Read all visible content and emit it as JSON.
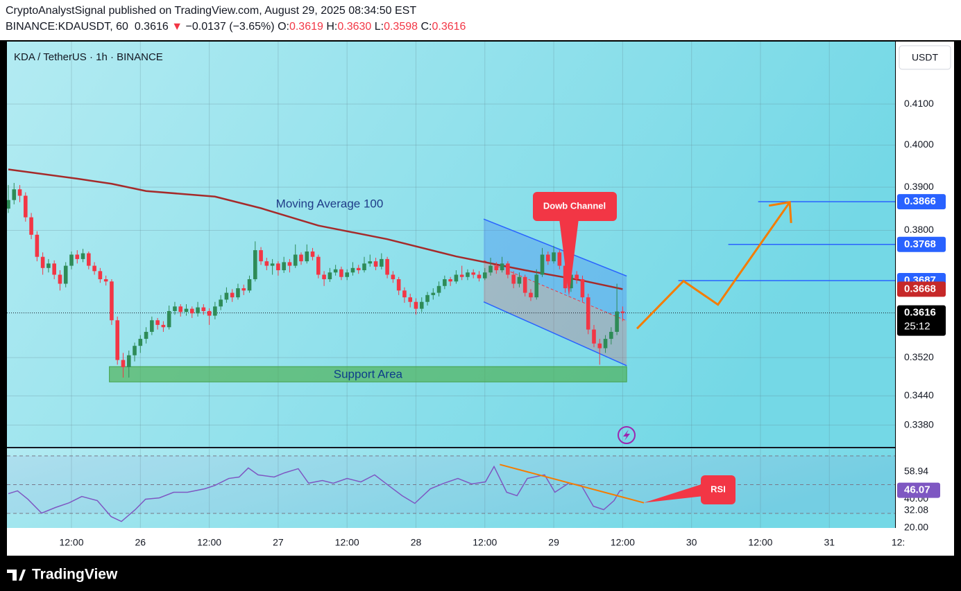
{
  "header": {
    "publisher": "CryptoAnalystSignal published on TradingView.com, August 29, 2025 08:34:50 EST",
    "symbol": "BINANCE:KDAUSDT, 60",
    "price": "0.3616",
    "arrow": "▼",
    "change": "−0.0137 (−3.65%)",
    "ohlc": [
      [
        "O:",
        "0.3619"
      ],
      [
        "H:",
        "0.3630"
      ],
      [
        "L:",
        "0.3598"
      ],
      [
        "C:",
        "0.3616"
      ]
    ]
  },
  "footer": {
    "brand": "TradingView"
  },
  "chart_data": [
    {
      "type": "candlestick",
      "title": "KDA / TetherUS · 1h · BINANCE",
      "currency": "USDT",
      "log_scale": true,
      "grid": true,
      "up_color": "#2e8b57",
      "down_color": "#f23645",
      "ylim": [
        0.3336,
        0.4257
      ],
      "yticks": [
        {
          "value": 0.338,
          "label": "0.3380"
        },
        {
          "value": 0.344,
          "label": "0.3440"
        },
        {
          "value": 0.352,
          "label": "0.3520"
        },
        {
          "value": 0.38,
          "label": "0.3800"
        },
        {
          "value": 0.39,
          "label": "0.3900"
        },
        {
          "value": 0.4,
          "label": "0.4000"
        },
        {
          "value": 0.41,
          "label": "0.4100"
        }
      ],
      "xlim": [
        -0.24,
        154.45
      ],
      "xticks": [
        {
          "value": 11,
          "label": "12:00"
        },
        {
          "value": 23,
          "label": "26"
        },
        {
          "value": 35,
          "label": "12:00"
        },
        {
          "value": 47,
          "label": "27"
        },
        {
          "value": 59,
          "label": "12:00"
        },
        {
          "value": 71,
          "label": "28"
        },
        {
          "value": 83,
          "label": "12:00"
        },
        {
          "value": 95,
          "label": "29"
        },
        {
          "value": 107,
          "label": "12:00"
        },
        {
          "value": 119,
          "label": "30"
        },
        {
          "value": 131,
          "label": "12:00"
        },
        {
          "value": 143,
          "label": "31"
        },
        {
          "value": 155,
          "label": "12:"
        }
      ],
      "candles": [
        [
          0.385,
          0.3905,
          0.384,
          0.387
        ],
        [
          0.387,
          0.391,
          0.386,
          0.3895
        ],
        [
          0.3895,
          0.3905,
          0.3865,
          0.388
        ],
        [
          0.388,
          0.3888,
          0.382,
          0.383
        ],
        [
          0.383,
          0.384,
          0.378,
          0.379
        ],
        [
          0.379,
          0.3798,
          0.373,
          0.374
        ],
        [
          0.374,
          0.375,
          0.37,
          0.3715
        ],
        [
          0.3715,
          0.3735,
          0.3705,
          0.3725
        ],
        [
          0.3725,
          0.3732,
          0.369,
          0.37
        ],
        [
          0.37,
          0.371,
          0.3665,
          0.368
        ],
        [
          0.368,
          0.3728,
          0.3672,
          0.372
        ],
        [
          0.372,
          0.3752,
          0.3712,
          0.3745
        ],
        [
          0.3745,
          0.3755,
          0.3725,
          0.3735
        ],
        [
          0.3735,
          0.3758,
          0.3728,
          0.3748
        ],
        [
          0.3748,
          0.3752,
          0.3712,
          0.372
        ],
        [
          0.372,
          0.3728,
          0.37,
          0.3708
        ],
        [
          0.3708,
          0.3715,
          0.3682,
          0.369
        ],
        [
          0.369,
          0.3698,
          0.3676,
          0.3685
        ],
        [
          0.3685,
          0.369,
          0.359,
          0.36
        ],
        [
          0.36,
          0.3608,
          0.3505,
          0.3515
        ],
        [
          0.3515,
          0.353,
          0.3478,
          0.35
        ],
        [
          0.35,
          0.3535,
          0.3478,
          0.3525
        ],
        [
          0.3525,
          0.3552,
          0.3512,
          0.3545
        ],
        [
          0.3545,
          0.3568,
          0.353,
          0.356
        ],
        [
          0.356,
          0.3585,
          0.355,
          0.3575
        ],
        [
          0.3575,
          0.3608,
          0.3568,
          0.36
        ],
        [
          0.36,
          0.3605,
          0.358,
          0.359
        ],
        [
          0.359,
          0.3598,
          0.3575,
          0.3585
        ],
        [
          0.3585,
          0.3632,
          0.358,
          0.362
        ],
        [
          0.362,
          0.364,
          0.3612,
          0.363
        ],
        [
          0.363,
          0.3635,
          0.3608,
          0.3618
        ],
        [
          0.3618,
          0.3635,
          0.361,
          0.3625
        ],
        [
          0.3625,
          0.363,
          0.3605,
          0.3615
        ],
        [
          0.3615,
          0.364,
          0.3608,
          0.3628
        ],
        [
          0.3628,
          0.3635,
          0.3612,
          0.362
        ],
        [
          0.362,
          0.3626,
          0.359,
          0.361
        ],
        [
          0.361,
          0.364,
          0.3602,
          0.363
        ],
        [
          0.363,
          0.3655,
          0.3622,
          0.3645
        ],
        [
          0.3645,
          0.3672,
          0.3638,
          0.366
        ],
        [
          0.366,
          0.3668,
          0.364,
          0.365
        ],
        [
          0.365,
          0.368,
          0.3645,
          0.367
        ],
        [
          0.367,
          0.3678,
          0.3655,
          0.3665
        ],
        [
          0.3665,
          0.3698,
          0.366,
          0.369
        ],
        [
          0.369,
          0.3775,
          0.3685,
          0.3755
        ],
        [
          0.3755,
          0.3762,
          0.3722,
          0.373
        ],
        [
          0.373,
          0.3738,
          0.371,
          0.372
        ],
        [
          0.372,
          0.3735,
          0.37,
          0.3725
        ],
        [
          0.3725,
          0.373,
          0.3698,
          0.371
        ],
        [
          0.371,
          0.374,
          0.3704,
          0.3728
        ],
        [
          0.3728,
          0.3735,
          0.3705,
          0.372
        ],
        [
          0.372,
          0.3768,
          0.3715,
          0.3745
        ],
        [
          0.3745,
          0.375,
          0.3722,
          0.373
        ],
        [
          0.373,
          0.3768,
          0.3725,
          0.3752
        ],
        [
          0.3752,
          0.376,
          0.3732,
          0.374
        ],
        [
          0.374,
          0.3745,
          0.3692,
          0.37
        ],
        [
          0.37,
          0.3708,
          0.3675,
          0.369
        ],
        [
          0.369,
          0.3715,
          0.3684,
          0.3705
        ],
        [
          0.3705,
          0.3722,
          0.3698,
          0.3712
        ],
        [
          0.3712,
          0.3718,
          0.3688,
          0.3695
        ],
        [
          0.3695,
          0.3712,
          0.3688,
          0.3705
        ],
        [
          0.3705,
          0.3728,
          0.3698,
          0.3715
        ],
        [
          0.3715,
          0.3722,
          0.3702,
          0.371
        ],
        [
          0.371,
          0.374,
          0.3705,
          0.3725
        ],
        [
          0.3725,
          0.3745,
          0.3718,
          0.373
        ],
        [
          0.373,
          0.3738,
          0.371,
          0.3718
        ],
        [
          0.3718,
          0.3748,
          0.3712,
          0.3735
        ],
        [
          0.3735,
          0.374,
          0.3692,
          0.37
        ],
        [
          0.37,
          0.3708,
          0.3682,
          0.369
        ],
        [
          0.369,
          0.3695,
          0.3655,
          0.3665
        ],
        [
          0.3665,
          0.3672,
          0.3638,
          0.365
        ],
        [
          0.365,
          0.3658,
          0.3628,
          0.364
        ],
        [
          0.364,
          0.3648,
          0.3612,
          0.3625
        ],
        [
          0.3625,
          0.365,
          0.3618,
          0.364
        ],
        [
          0.364,
          0.3662,
          0.3632,
          0.3655
        ],
        [
          0.3655,
          0.367,
          0.3645,
          0.366
        ],
        [
          0.366,
          0.3685,
          0.3652,
          0.3675
        ],
        [
          0.3675,
          0.3698,
          0.3668,
          0.369
        ],
        [
          0.369,
          0.3695,
          0.3675,
          0.3685
        ],
        [
          0.3685,
          0.371,
          0.368,
          0.37
        ],
        [
          0.37,
          0.372,
          0.3688,
          0.3695
        ],
        [
          0.3695,
          0.3712,
          0.3688,
          0.3705
        ],
        [
          0.3705,
          0.3712,
          0.3692,
          0.37
        ],
        [
          0.37,
          0.3708,
          0.3685,
          0.3692
        ],
        [
          0.3692,
          0.3715,
          0.3688,
          0.3705
        ],
        [
          0.3705,
          0.3738,
          0.3698,
          0.372
        ],
        [
          0.372,
          0.3728,
          0.3702,
          0.371
        ],
        [
          0.371,
          0.374,
          0.3705,
          0.3725
        ],
        [
          0.3725,
          0.373,
          0.3692,
          0.37
        ],
        [
          0.37,
          0.3708,
          0.367,
          0.368
        ],
        [
          0.368,
          0.3705,
          0.3672,
          0.3695
        ],
        [
          0.3695,
          0.37,
          0.3652,
          0.366
        ],
        [
          0.366,
          0.3668,
          0.3642,
          0.365
        ],
        [
          0.365,
          0.3712,
          0.3645,
          0.37
        ],
        [
          0.37,
          0.376,
          0.3695,
          0.3745
        ],
        [
          0.3745,
          0.3752,
          0.3722,
          0.373
        ],
        [
          0.373,
          0.3765,
          0.3725,
          0.375
        ],
        [
          0.375,
          0.3755,
          0.3712,
          0.372
        ],
        [
          0.372,
          0.3728,
          0.366,
          0.367
        ],
        [
          0.367,
          0.3712,
          0.3662,
          0.37
        ],
        [
          0.37,
          0.3708,
          0.368,
          0.369
        ],
        [
          0.369,
          0.3698,
          0.364,
          0.365
        ],
        [
          0.365,
          0.3658,
          0.357,
          0.358
        ],
        [
          0.358,
          0.359,
          0.3542,
          0.355
        ],
        [
          0.355,
          0.356,
          0.3505,
          0.354
        ],
        [
          0.354,
          0.3568,
          0.353,
          0.356
        ],
        [
          0.356,
          0.3585,
          0.3548,
          0.3575
        ],
        [
          0.3575,
          0.368,
          0.3568,
          0.3619
        ],
        [
          0.3619,
          0.363,
          0.3598,
          0.3616
        ]
      ],
      "ma": {
        "name": "Moving Average 100",
        "color": "#a52a2a",
        "x": [
          0,
          12,
          18,
          24,
          36,
          44,
          54,
          66,
          78,
          90,
          100,
          107
        ],
        "values": [
          0.3942,
          0.392,
          0.3908,
          0.3891,
          0.3878,
          0.3851,
          0.3811,
          0.378,
          0.3741,
          0.371,
          0.3687,
          0.3668
        ]
      },
      "channel": {
        "label": "Dowb Channel",
        "x": [
          82.8,
          107.7
        ],
        "upper": [
          0.3826,
          0.3697
        ],
        "lower": [
          0.364,
          0.3503
        ]
      },
      "support": {
        "label": "Support Area",
        "x": [
          17.6,
          107.7
        ],
        "range": [
          0.3469,
          0.3501
        ]
      },
      "levels": [
        {
          "value": 0.3866,
          "from": 130.6
        },
        {
          "value": 0.3768,
          "from": 125.4
        },
        {
          "value": 0.3687,
          "from": 116.7
        }
      ],
      "level_color": "#2962ff",
      "projection": {
        "color": "#f57c00",
        "x": [
          109.5,
          117.6,
          123.6,
          136.1
        ],
        "values": [
          0.3582,
          0.3686,
          0.3634,
          0.3865
        ]
      },
      "last_price": {
        "value": 0.3616,
        "countdown": "25:12"
      }
    },
    {
      "type": "line",
      "name": "RSI",
      "color": "#7e57c2",
      "x": [
        0,
        1.6,
        3.4,
        5.8,
        8.2,
        10.6,
        12.8,
        15.5,
        17.9,
        19.7,
        22.1,
        23.9,
        26.3,
        28.8,
        31.2,
        34.2,
        36,
        38.4,
        40.2,
        41.8,
        43.5,
        46.3,
        48.1,
        50.5,
        52.3,
        54.7,
        56.6,
        59,
        61.4,
        63.8,
        66.2,
        68.6,
        70.8,
        73.5,
        75.9,
        78.3,
        80.7,
        83.1,
        84.6,
        86.8,
        88.6,
        90.4,
        93.4,
        95.2,
        97.6,
        99.8,
        101.9,
        103.7,
        105.5,
        106.5,
        107
      ],
      "values": [
        43.7,
        45.7,
        39.9,
        30.2,
        34.1,
        37.4,
        41.8,
        38.9,
        27.8,
        24.4,
        32.6,
        39.9,
        40.8,
        44.7,
        44.7,
        47.1,
        49.5,
        54.3,
        55.3,
        61.6,
        56.8,
        55.3,
        58.2,
        61.1,
        51.0,
        52.9,
        51.0,
        54.3,
        51.9,
        56.8,
        49.5,
        42.3,
        37.0,
        47.1,
        51.0,
        54.3,
        50.5,
        51.9,
        62.6,
        44.7,
        42.3,
        54.3,
        56.8,
        44.7,
        51.0,
        49.5,
        35.0,
        32.6,
        38.9,
        45.7,
        46.07
      ],
      "ylim": [
        19.9,
        74.8
      ],
      "yticks": [
        {
          "value": 20,
          "label": "20.00"
        },
        32.08,
        {
          "value": 40,
          "label": "40.00"
        },
        58.94
      ],
      "levels": [
        70,
        50,
        30
      ],
      "trendline": {
        "color": "#f57c00",
        "x": [
          85.6,
          110.7
        ],
        "values": [
          64.0,
          37.4
        ]
      }
    }
  ]
}
